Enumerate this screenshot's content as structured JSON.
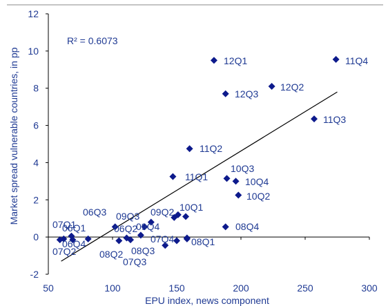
{
  "chart_data": {
    "type": "scatter",
    "xlabel": "EPU index, news component",
    "ylabel": "Market spread vulnerable countries, in pp",
    "xlim": [
      50,
      300
    ],
    "ylim": [
      -2,
      12
    ],
    "xticks": [
      50,
      100,
      150,
      200,
      250,
      300
    ],
    "yticks": [
      -2,
      0,
      2,
      4,
      6,
      8,
      10,
      12
    ],
    "grid": false,
    "annotation": "R² = 0.6073",
    "trendline": {
      "x": [
        60,
        275
      ],
      "y": [
        -1.3,
        7.8
      ]
    },
    "color": "#0d1a8c",
    "points": [
      {
        "label": "07Q1",
        "x": 59,
        "y": -0.15
      },
      {
        "label": "07Q2",
        "x": 62,
        "y": -0.1
      },
      {
        "label": "",
        "x": 68,
        "y": 0.05
      },
      {
        "label": "",
        "x": 69,
        "y": -0.15
      },
      {
        "label": "06Q4",
        "x": 81,
        "y": -0.1
      },
      {
        "label": "06Q1",
        "x": 102,
        "y": 0.55
      },
      {
        "label": "06Q3",
        "x": 105,
        "y": -0.2
      },
      {
        "label": "08Q2",
        "x": 111,
        "y": -0.05
      },
      {
        "label": "",
        "x": 114,
        "y": -0.15
      },
      {
        "label": "06Q2",
        "x": 122,
        "y": 0.1
      },
      {
        "label": "",
        "x": 125,
        "y": 0.55
      },
      {
        "label": "09Q3",
        "x": 130,
        "y": 0.8
      },
      {
        "label": "07Q4",
        "x": 148,
        "y": 1.05
      },
      {
        "label": "09Q2",
        "x": 151,
        "y": 1.2
      },
      {
        "label": "10Q1",
        "x": 157,
        "y": 1.1
      },
      {
        "label": "09Q4",
        "x": 158,
        "y": -0.05
      },
      {
        "label": "08Q3",
        "x": 150,
        "y": -0.2
      },
      {
        "label": "07Q3",
        "x": 141,
        "y": -0.45
      },
      {
        "label": "11Q1",
        "x": 147,
        "y": 3.25
      },
      {
        "label": "11Q2",
        "x": 160,
        "y": 4.75
      },
      {
        "label": "12Q1",
        "x": 179,
        "y": 9.5
      },
      {
        "label": "12Q3",
        "x": 188,
        "y": 7.7
      },
      {
        "label": "12Q2",
        "x": 224,
        "y": 8.1
      },
      {
        "label": "11Q4",
        "x": 274,
        "y": 9.55
      },
      {
        "label": "11Q3",
        "x": 257,
        "y": 6.35
      },
      {
        "label": "10Q3",
        "x": 189,
        "y": 3.15
      },
      {
        "label": "10Q4",
        "x": 196,
        "y": 3.0
      },
      {
        "label": "10Q2",
        "x": 198,
        "y": 2.25
      },
      {
        "label": "08Q4",
        "x": 188,
        "y": 0.55
      },
      {
        "label": "08Q1",
        "x": 158,
        "y": -0.1
      }
    ]
  }
}
